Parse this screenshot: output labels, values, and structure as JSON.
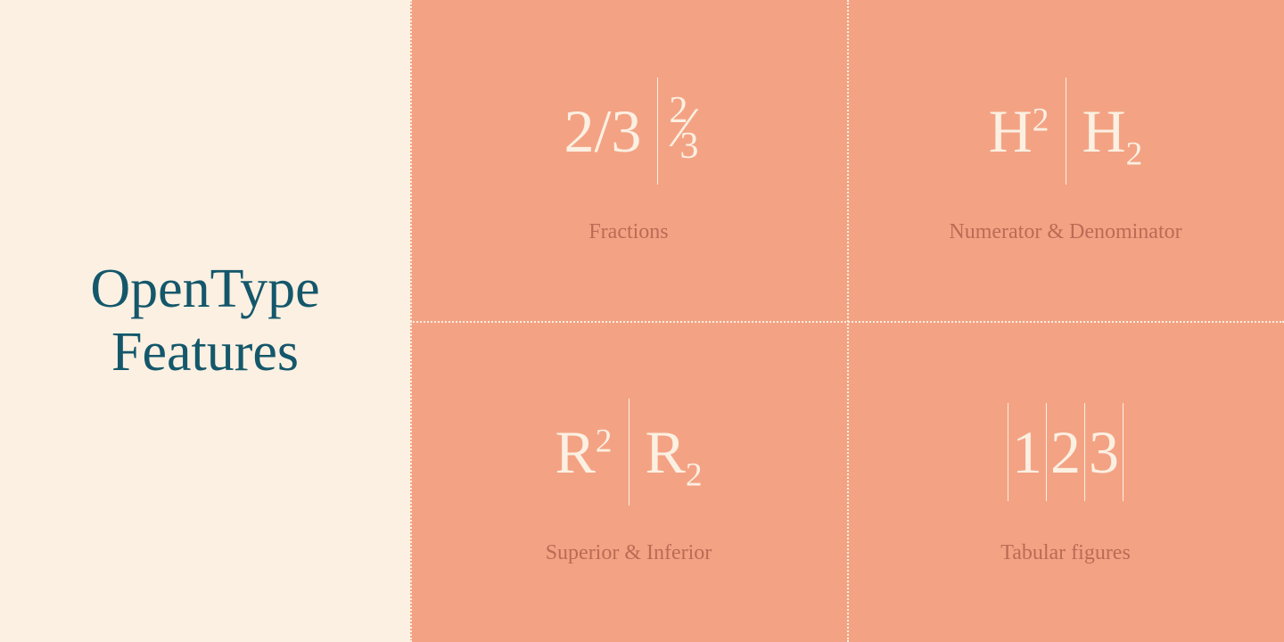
{
  "colors": {
    "left_bg": "#fbf0e2",
    "right_bg": "#f3a384",
    "title_color": "#14576b",
    "sample_color": "#fbf0e2",
    "caption_color": "#bb6b55",
    "divider_color": "#fbf0e2",
    "dotted_color": "#fbf0e2"
  },
  "left": {
    "title_line1": "OpenType",
    "title_line2": "Features"
  },
  "grid": {
    "fractions": {
      "before": "2/3",
      "after_num": "2",
      "after_den": "3",
      "caption": "Fractions"
    },
    "numr_dnom": {
      "left_base": "H",
      "left_sup": "2",
      "right_base": "H",
      "right_sub": "2",
      "caption": "Numerator & Denominator"
    },
    "sups_subs": {
      "left_base": "R",
      "left_sup": "2",
      "right_base": "R",
      "right_sub": "2",
      "caption": "Superior & Inferior"
    },
    "tabular": {
      "d1": "1",
      "d2": "2",
      "d3": "3",
      "caption": "Tabular figures"
    }
  }
}
